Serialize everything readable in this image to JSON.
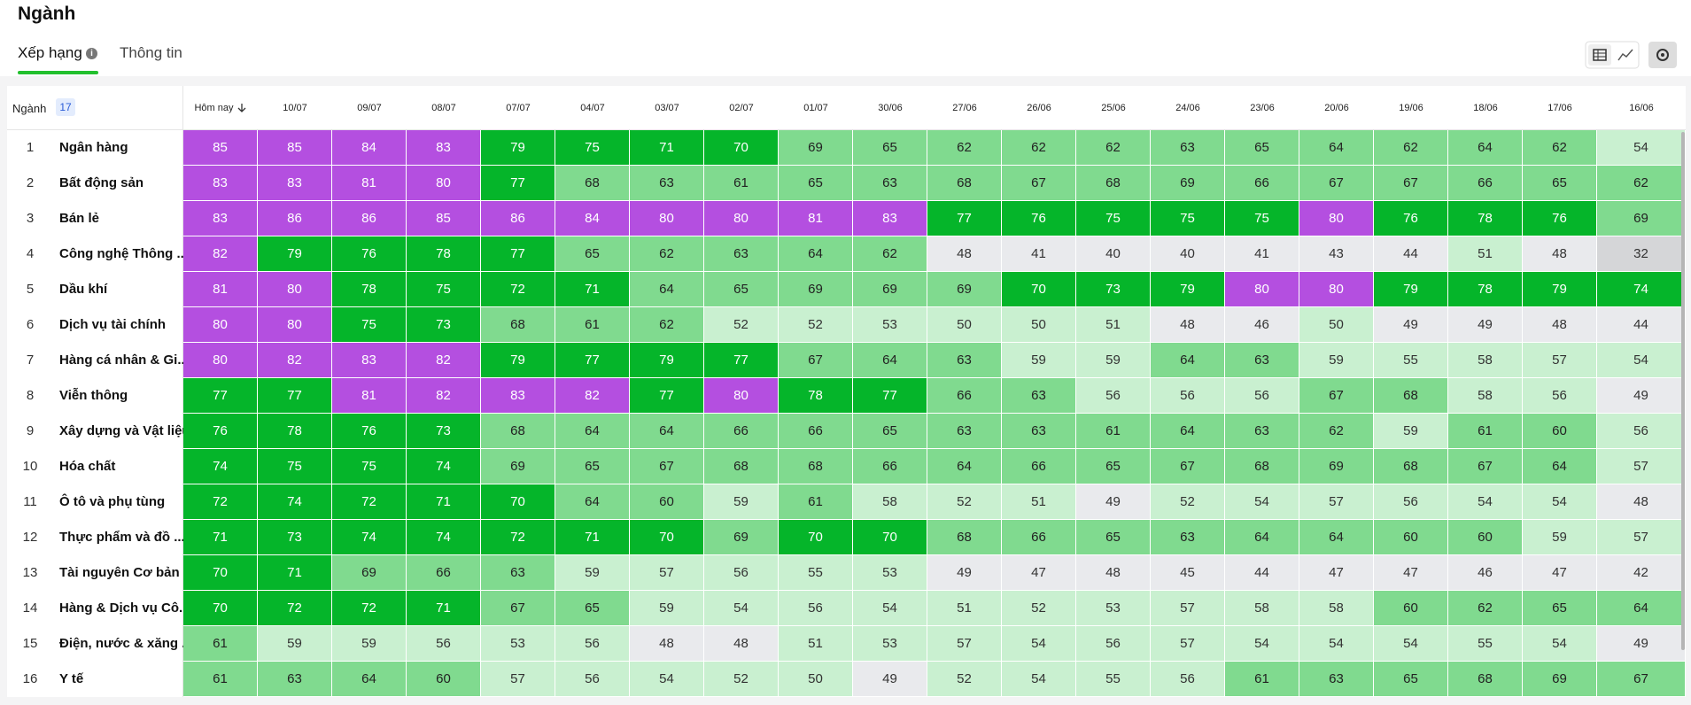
{
  "header": {
    "title": "Ngành",
    "tabs": [
      "Xếp hạng",
      "Thông tin"
    ]
  },
  "table": {
    "corner_label": "Ngành",
    "count": "17",
    "columns": [
      "Hôm nay",
      "10/07",
      "09/07",
      "08/07",
      "07/07",
      "04/07",
      "03/07",
      "02/07",
      "01/07",
      "30/06",
      "27/06",
      "26/06",
      "25/06",
      "24/06",
      "23/06",
      "20/06",
      "19/06",
      "18/06",
      "17/06",
      "16/06"
    ],
    "rows": [
      {
        "rank": 1,
        "name": "Ngân hàng",
        "values": [
          85,
          85,
          84,
          83,
          79,
          75,
          71,
          70,
          69,
          65,
          62,
          62,
          62,
          63,
          65,
          64,
          62,
          64,
          62,
          54
        ]
      },
      {
        "rank": 2,
        "name": "Bất động sản",
        "values": [
          83,
          83,
          81,
          80,
          77,
          68,
          63,
          61,
          65,
          63,
          68,
          67,
          68,
          69,
          66,
          67,
          67,
          66,
          65,
          62
        ]
      },
      {
        "rank": 3,
        "name": "Bán lẻ",
        "values": [
          83,
          86,
          86,
          85,
          86,
          84,
          80,
          80,
          81,
          83,
          77,
          76,
          75,
          75,
          75,
          80,
          76,
          78,
          76,
          69
        ]
      },
      {
        "rank": 4,
        "name": "Công nghệ Thông ...",
        "values": [
          82,
          79,
          76,
          78,
          77,
          65,
          62,
          63,
          64,
          62,
          48,
          41,
          40,
          40,
          41,
          43,
          44,
          51,
          48,
          32
        ]
      },
      {
        "rank": 5,
        "name": "Dầu khí",
        "values": [
          81,
          80,
          78,
          75,
          72,
          71,
          64,
          65,
          69,
          69,
          69,
          70,
          73,
          79,
          80,
          80,
          79,
          78,
          79,
          74
        ]
      },
      {
        "rank": 6,
        "name": "Dịch vụ tài chính",
        "values": [
          80,
          80,
          75,
          73,
          68,
          61,
          62,
          52,
          52,
          53,
          50,
          50,
          51,
          48,
          46,
          50,
          49,
          49,
          48,
          44
        ]
      },
      {
        "rank": 7,
        "name": "Hàng cá nhân & Gi...",
        "values": [
          80,
          82,
          83,
          82,
          79,
          77,
          79,
          77,
          67,
          64,
          63,
          59,
          59,
          64,
          63,
          59,
          55,
          58,
          57,
          54
        ]
      },
      {
        "rank": 8,
        "name": "Viễn thông",
        "values": [
          77,
          77,
          81,
          82,
          83,
          82,
          77,
          80,
          78,
          77,
          66,
          63,
          56,
          56,
          56,
          67,
          68,
          58,
          56,
          49
        ]
      },
      {
        "rank": 9,
        "name": "Xây dựng và Vật liệu",
        "values": [
          76,
          78,
          76,
          73,
          68,
          64,
          64,
          66,
          66,
          65,
          63,
          63,
          61,
          64,
          63,
          62,
          59,
          61,
          60,
          56
        ]
      },
      {
        "rank": 10,
        "name": "Hóa chất",
        "values": [
          74,
          75,
          75,
          74,
          69,
          65,
          67,
          68,
          68,
          66,
          64,
          66,
          65,
          67,
          68,
          69,
          68,
          67,
          64,
          57
        ]
      },
      {
        "rank": 11,
        "name": "Ô tô và phụ tùng",
        "values": [
          72,
          74,
          72,
          71,
          70,
          64,
          60,
          59,
          61,
          58,
          52,
          51,
          49,
          52,
          54,
          57,
          56,
          54,
          54,
          48
        ]
      },
      {
        "rank": 12,
        "name": "Thực phẩm và đồ ...",
        "values": [
          71,
          73,
          74,
          74,
          72,
          71,
          70,
          69,
          70,
          70,
          68,
          66,
          65,
          63,
          64,
          64,
          60,
          60,
          59,
          57
        ]
      },
      {
        "rank": 13,
        "name": "Tài nguyên Cơ bản",
        "values": [
          70,
          71,
          69,
          66,
          63,
          59,
          57,
          56,
          55,
          53,
          49,
          47,
          48,
          45,
          44,
          47,
          47,
          46,
          47,
          42
        ]
      },
      {
        "rank": 14,
        "name": "Hàng & Dịch vụ Cô...",
        "values": [
          70,
          72,
          72,
          71,
          67,
          65,
          59,
          54,
          56,
          54,
          51,
          52,
          53,
          57,
          58,
          58,
          60,
          62,
          65,
          64
        ]
      },
      {
        "rank": 15,
        "name": "Điện, nước & xăng ...",
        "values": [
          61,
          59,
          59,
          56,
          53,
          56,
          48,
          48,
          51,
          53,
          57,
          54,
          56,
          57,
          54,
          54,
          54,
          55,
          54,
          49
        ]
      },
      {
        "rank": 16,
        "name": "Y tế",
        "values": [
          61,
          63,
          64,
          60,
          57,
          56,
          54,
          52,
          50,
          49,
          52,
          54,
          55,
          56,
          61,
          63,
          65,
          68,
          69,
          67
        ]
      }
    ]
  }
}
